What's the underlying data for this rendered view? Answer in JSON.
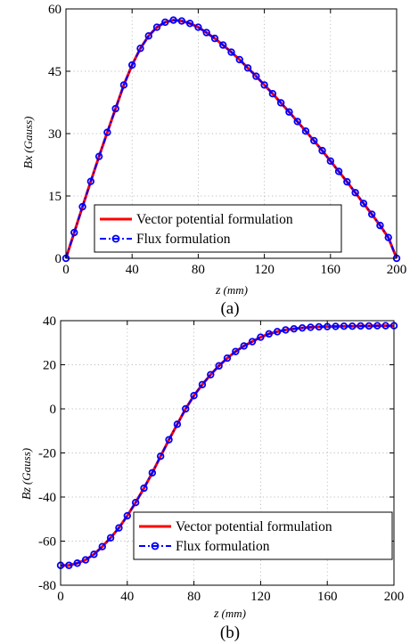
{
  "chart_data": [
    {
      "type": "line",
      "caption": "(a)",
      "xlabel": "z",
      "xlabel_unit": "(mm)",
      "ylabel": "Bx",
      "ylabel_unit": "(Gauss)",
      "xlim": [
        0,
        200
      ],
      "ylim": [
        0,
        60
      ],
      "xticks": [
        0,
        40,
        80,
        120,
        160,
        200
      ],
      "yticks": [
        0,
        15,
        30,
        45,
        60
      ],
      "grid": true,
      "legend_position": "bottom-left",
      "x": [
        0,
        5,
        10,
        15,
        20,
        25,
        30,
        35,
        40,
        45,
        50,
        55,
        60,
        65,
        70,
        75,
        80,
        85,
        90,
        95,
        100,
        105,
        110,
        115,
        120,
        125,
        130,
        135,
        140,
        145,
        150,
        155,
        160,
        165,
        170,
        175,
        180,
        185,
        190,
        195,
        200
      ],
      "series": [
        {
          "name": "Vector potential formulation",
          "color": "#ff0000",
          "style": "solid",
          "values": [
            0,
            6.2,
            12.4,
            18.5,
            24.5,
            30.3,
            36.0,
            41.7,
            46.5,
            50.5,
            53.5,
            55.6,
            56.8,
            57.3,
            57.1,
            56.5,
            55.6,
            54.3,
            52.9,
            51.3,
            49.6,
            47.8,
            45.8,
            43.8,
            41.7,
            39.6,
            37.4,
            35.2,
            32.9,
            30.6,
            28.3,
            25.9,
            23.4,
            20.9,
            18.4,
            15.8,
            13.2,
            10.6,
            7.9,
            5.0,
            0
          ]
        },
        {
          "name": "Flux formulation",
          "color": "#0000ff",
          "style": "dashdot-circle",
          "values": [
            0,
            6.2,
            12.4,
            18.5,
            24.5,
            30.3,
            36.0,
            41.7,
            46.5,
            50.5,
            53.5,
            55.6,
            56.8,
            57.3,
            57.1,
            56.5,
            55.6,
            54.3,
            52.9,
            51.3,
            49.6,
            47.8,
            45.8,
            43.8,
            41.7,
            39.6,
            37.4,
            35.2,
            32.9,
            30.6,
            28.3,
            25.9,
            23.4,
            20.9,
            18.4,
            15.8,
            13.2,
            10.6,
            7.9,
            5.0,
            0
          ]
        }
      ]
    },
    {
      "type": "line",
      "caption": "(b)",
      "xlabel": "z",
      "xlabel_unit": "(mm)",
      "ylabel": "Bz",
      "ylabel_unit": "(Gauss)",
      "xlim": [
        0,
        200
      ],
      "ylim": [
        -80,
        40
      ],
      "xticks": [
        0,
        40,
        80,
        120,
        160,
        200
      ],
      "yticks": [
        -80,
        -60,
        -40,
        -20,
        0,
        20,
        40
      ],
      "grid": true,
      "legend_position": "bottom-right",
      "x": [
        0,
        5,
        10,
        15,
        20,
        25,
        30,
        35,
        40,
        45,
        50,
        55,
        60,
        65,
        70,
        75,
        80,
        85,
        90,
        95,
        100,
        105,
        110,
        115,
        120,
        125,
        130,
        135,
        140,
        145,
        150,
        155,
        160,
        165,
        170,
        175,
        180,
        185,
        190,
        195,
        200
      ],
      "series": [
        {
          "name": "Vector potential formulation",
          "color": "#ff0000",
          "style": "solid",
          "values": [
            -71,
            -71,
            -70,
            -68.5,
            -66,
            -62.5,
            -58.5,
            -54,
            -48.5,
            -42.5,
            -36,
            -29,
            -21.5,
            -14,
            -7,
            0,
            6,
            11,
            15.5,
            19.5,
            23,
            26,
            28.5,
            30.5,
            32.5,
            34,
            35,
            35.8,
            36.3,
            36.7,
            37,
            37.2,
            37.3,
            37.4,
            37.5,
            37.5,
            37.6,
            37.6,
            37.7,
            37.7,
            37.7
          ]
        },
        {
          "name": "Flux formulation",
          "color": "#0000ff",
          "style": "dashdot-circle",
          "values": [
            -71,
            -71,
            -70,
            -68.5,
            -66,
            -62.5,
            -58.5,
            -54,
            -48.5,
            -42.5,
            -36,
            -29,
            -21.5,
            -14,
            -7,
            0,
            6,
            11,
            15.5,
            19.5,
            23,
            26,
            28.5,
            30.5,
            32.5,
            34,
            35,
            35.8,
            36.3,
            36.7,
            37,
            37.2,
            37.3,
            37.4,
            37.5,
            37.5,
            37.6,
            37.6,
            37.7,
            37.7,
            37.7
          ]
        }
      ]
    }
  ]
}
